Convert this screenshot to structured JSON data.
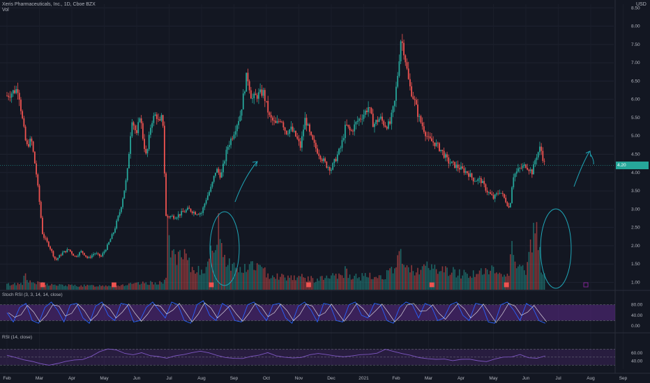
{
  "header": {
    "title": "Xeris Pharmaceuticals, Inc., 1D, Cboe BZX",
    "volume_label": "Vol",
    "currency": "USD"
  },
  "panes": {
    "stoch_title": "Stoch RSI (3, 3, 14, 14, close)",
    "rsi_title": "RSI (14, close)"
  },
  "colors": {
    "background": "#131722",
    "up": "#26a69a",
    "down": "#ef5350",
    "stoch_k": "#2962ff",
    "stoch_d": "#ffffff",
    "rsi": "#7e57c2",
    "band_fill": "#5b2a86",
    "annotation": "#1fa7b8"
  },
  "current_price_badge": "4.20",
  "chart_data": [
    {
      "type": "candlestick",
      "title": "Xeris Pharmaceuticals, Inc., 1D, Cboe BZX",
      "ylabel": "USD",
      "ylim": [
        0.8,
        8.6
      ],
      "y_ticks": [
        "8.50",
        "8.00",
        "7.50",
        "7.00",
        "6.50",
        "6.00",
        "5.50",
        "5.00",
        "4.50",
        "4.00",
        "3.50",
        "3.00",
        "2.50",
        "2.00",
        "1.50",
        "1.00"
      ],
      "y_tick_values": [
        8.5,
        8.0,
        7.5,
        7.0,
        6.5,
        6.0,
        5.5,
        5.0,
        4.5,
        4.0,
        3.5,
        3.0,
        2.5,
        2.0,
        1.5,
        1.0
      ],
      "x_ticks": [
        "Feb",
        "Mar",
        "Apr",
        "May",
        "Jun",
        "Jul",
        "Aug",
        "Sep",
        "Oct",
        "Nov",
        "Dec",
        "2021",
        "Feb",
        "Mar",
        "Apr",
        "May",
        "Jun",
        "Jul",
        "Aug",
        "Sep"
      ],
      "x_tick_months": [
        0,
        1,
        2,
        3,
        4,
        5,
        6,
        7,
        8,
        9,
        10,
        11,
        12,
        13,
        14,
        15,
        16,
        17,
        18,
        19
      ],
      "price_path": [
        [
          0,
          6.1
        ],
        [
          0.35,
          6.3
        ],
        [
          0.45,
          5.6
        ],
        [
          0.6,
          4.7
        ],
        [
          0.75,
          4.9
        ],
        [
          0.9,
          4.0
        ],
        [
          1.0,
          3.2
        ],
        [
          1.1,
          2.3
        ],
        [
          1.3,
          2.0
        ],
        [
          1.5,
          1.6
        ],
        [
          1.7,
          1.8
        ],
        [
          1.9,
          1.9
        ],
        [
          2.1,
          1.7
        ],
        [
          2.3,
          1.85
        ],
        [
          2.5,
          1.65
        ],
        [
          2.7,
          1.8
        ],
        [
          2.9,
          1.7
        ],
        [
          3.1,
          2.0
        ],
        [
          3.3,
          2.4
        ],
        [
          3.5,
          3.0
        ],
        [
          3.7,
          3.9
        ],
        [
          3.85,
          5.5
        ],
        [
          4.0,
          5.0
        ],
        [
          4.1,
          5.6
        ],
        [
          4.2,
          4.9
        ],
        [
          4.3,
          4.4
        ],
        [
          4.45,
          5.4
        ],
        [
          4.6,
          5.6
        ],
        [
          4.7,
          5.3
        ],
        [
          4.8,
          5.6
        ],
        [
          4.9,
          2.8
        ],
        [
          5.2,
          2.8
        ],
        [
          5.4,
          2.9
        ],
        [
          5.6,
          3.0
        ],
        [
          5.8,
          2.9
        ],
        [
          6.0,
          2.9
        ],
        [
          6.15,
          3.3
        ],
        [
          6.3,
          3.6
        ],
        [
          6.45,
          4.1
        ],
        [
          6.6,
          3.9
        ],
        [
          6.8,
          4.7
        ],
        [
          6.95,
          5.0
        ],
        [
          7.2,
          5.6
        ],
        [
          7.4,
          6.7
        ],
        [
          7.55,
          6.0
        ],
        [
          7.7,
          6.1
        ],
        [
          7.9,
          6.2
        ],
        [
          8.1,
          5.5
        ],
        [
          8.3,
          5.3
        ],
        [
          8.45,
          5.5
        ],
        [
          8.6,
          5.1
        ],
        [
          8.75,
          5.2
        ],
        [
          8.9,
          5.0
        ],
        [
          9.05,
          4.7
        ],
        [
          9.2,
          5.5
        ],
        [
          9.35,
          5.0
        ],
        [
          9.5,
          4.7
        ],
        [
          9.7,
          4.4
        ],
        [
          9.85,
          4.2
        ],
        [
          10.0,
          4.1
        ],
        [
          10.15,
          4.4
        ],
        [
          10.3,
          4.7
        ],
        [
          10.45,
          5.3
        ],
        [
          10.6,
          5.1
        ],
        [
          10.8,
          5.4
        ],
        [
          11.0,
          5.6
        ],
        [
          11.15,
          5.8
        ],
        [
          11.3,
          5.3
        ],
        [
          11.5,
          5.5
        ],
        [
          11.65,
          5.3
        ],
        [
          11.8,
          5.3
        ],
        [
          11.95,
          5.9
        ],
        [
          12.05,
          6.7
        ],
        [
          12.15,
          7.7
        ],
        [
          12.25,
          7.3
        ],
        [
          12.4,
          6.4
        ],
        [
          12.55,
          6.0
        ],
        [
          12.7,
          5.5
        ],
        [
          12.85,
          5.2
        ],
        [
          13.0,
          4.9
        ],
        [
          13.2,
          4.8
        ],
        [
          13.4,
          4.6
        ],
        [
          13.6,
          4.3
        ],
        [
          13.8,
          4.2
        ],
        [
          14.0,
          4.1
        ],
        [
          14.2,
          4.0
        ],
        [
          14.4,
          3.8
        ],
        [
          14.6,
          3.8
        ],
        [
          14.8,
          3.5
        ],
        [
          15.0,
          3.3
        ],
        [
          15.2,
          3.5
        ],
        [
          15.4,
          3.2
        ],
        [
          15.5,
          3.0
        ],
        [
          15.6,
          3.9
        ],
        [
          15.8,
          4.1
        ],
        [
          16.0,
          4.2
        ],
        [
          16.2,
          4.0
        ],
        [
          16.3,
          4.4
        ],
        [
          16.45,
          4.7
        ],
        [
          16.55,
          4.3
        ],
        [
          16.6,
          4.2
        ]
      ]
    },
    {
      "type": "bar",
      "title": "Vol",
      "volume_path": [
        [
          0,
          0.08
        ],
        [
          0.5,
          0.1
        ],
        [
          0.55,
          0.5
        ],
        [
          0.6,
          0.12
        ],
        [
          1.5,
          0.07
        ],
        [
          2.5,
          0.06
        ],
        [
          3.5,
          0.07
        ],
        [
          4.0,
          0.09
        ],
        [
          4.9,
          0.12
        ],
        [
          4.95,
          0.95
        ],
        [
          5.05,
          0.7
        ],
        [
          5.2,
          0.45
        ],
        [
          5.5,
          0.5
        ],
        [
          5.7,
          0.3
        ],
        [
          6.2,
          0.35
        ],
        [
          6.5,
          0.95
        ],
        [
          6.6,
          0.95
        ],
        [
          6.7,
          0.5
        ],
        [
          7.0,
          0.35
        ],
        [
          7.3,
          0.3
        ],
        [
          7.6,
          0.4
        ],
        [
          8.0,
          0.25
        ],
        [
          8.5,
          0.2
        ],
        [
          9.0,
          0.2
        ],
        [
          9.5,
          0.15
        ],
        [
          10.0,
          0.2
        ],
        [
          10.4,
          0.2
        ],
        [
          10.45,
          0.45
        ],
        [
          10.5,
          0.2
        ],
        [
          11.0,
          0.2
        ],
        [
          11.5,
          0.2
        ],
        [
          12.0,
          0.3
        ],
        [
          12.15,
          0.65
        ],
        [
          12.3,
          0.3
        ],
        [
          13.0,
          0.35
        ],
        [
          13.5,
          0.3
        ],
        [
          14.0,
          0.25
        ],
        [
          14.5,
          0.25
        ],
        [
          15.0,
          0.3
        ],
        [
          15.5,
          0.2
        ],
        [
          15.55,
          0.95
        ],
        [
          15.7,
          0.45
        ],
        [
          15.8,
          0.35
        ],
        [
          16.0,
          0.3
        ],
        [
          16.3,
          0.95
        ],
        [
          16.5,
          0.3
        ],
        [
          16.6,
          0.2
        ]
      ],
      "earnings_markers_months": [
        1.1,
        3.3,
        6.3,
        9.3,
        13.1,
        15.4,
        17.85
      ]
    },
    {
      "type": "line",
      "title": "Stoch RSI (3, 3, 14, 14, close)",
      "ylim": [
        0,
        100
      ],
      "y_ticks": [
        "80.00",
        "40.00",
        "0.00"
      ],
      "y_tick_values": [
        80,
        40,
        0
      ],
      "bands": [
        20,
        80
      ],
      "series": [
        {
          "values": [
            50,
            15,
            70,
            85,
            20,
            10,
            70,
            90,
            60,
            15,
            80,
            85,
            30,
            10,
            75,
            90,
            40,
            20,
            85,
            80,
            15,
            20,
            70,
            90,
            60,
            30,
            90,
            80,
            20,
            10,
            80,
            95,
            40,
            20,
            85,
            70,
            20,
            15,
            80,
            90,
            50,
            20,
            80,
            85,
            30,
            10,
            75,
            90,
            60,
            15,
            85,
            80,
            20,
            15,
            80,
            90,
            40,
            30,
            85,
            80,
            20,
            10,
            70,
            90,
            80,
            30,
            85,
            75,
            20,
            30,
            80,
            90,
            40,
            20,
            85,
            80,
            15,
            10,
            80,
            90,
            60,
            20,
            85,
            70,
            20,
            10
          ]
        }
      ]
    },
    {
      "type": "line",
      "title": "RSI (14, close)",
      "ylim": [
        20,
        90
      ],
      "y_ticks": [
        "60.00",
        "40.00"
      ],
      "y_tick_values": [
        60,
        40
      ],
      "bands": [
        30,
        70
      ],
      "series": [
        {
          "values": [
            56,
            50,
            44,
            40,
            33,
            30,
            34,
            38,
            42,
            45,
            52,
            62,
            70,
            68,
            60,
            56,
            60,
            55,
            50,
            47,
            52,
            56,
            62,
            66,
            60,
            55,
            50,
            46,
            48,
            52,
            56,
            60,
            54,
            50,
            48,
            50,
            55,
            58,
            56,
            52,
            50,
            52,
            55,
            57,
            60,
            70,
            64,
            58,
            54,
            50,
            47,
            45,
            44,
            42,
            44,
            46,
            42,
            40,
            46,
            50,
            52,
            56,
            48,
            46,
            52
          ]
        }
      ]
    }
  ]
}
